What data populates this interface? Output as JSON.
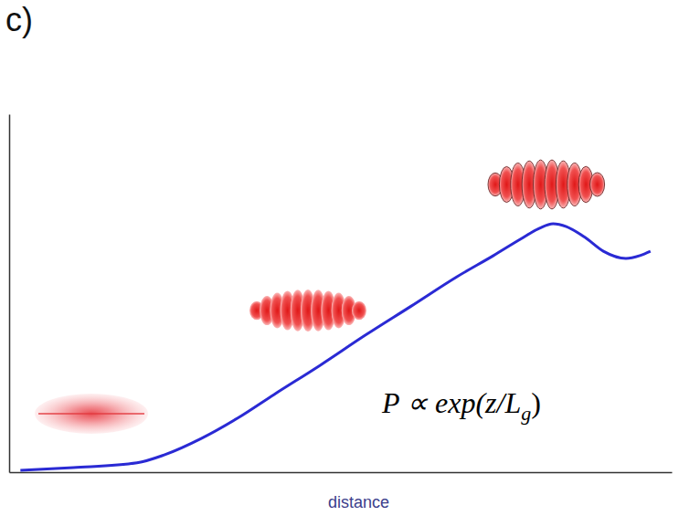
{
  "chart_data": {
    "type": "line",
    "panel_label": "c)",
    "x_label": "distance",
    "annotation": {
      "text": "P ∝ exp(z/L",
      "subscript": "g",
      "after": ")"
    },
    "x": [
      1.7,
      9.7,
      19.3,
      23.4,
      29.0,
      34.5,
      40.0,
      46.9,
      53.8,
      60.7,
      67.6,
      73.1,
      77.2,
      80.0,
      82.1,
      84.1,
      86.9,
      89.7,
      93.1,
      95.2,
      96.8
    ],
    "values": [
      0.5,
      1.3,
      2.6,
      4.8,
      9.4,
      15.1,
      21.7,
      29.8,
      38.3,
      46.4,
      54.6,
      60.5,
      65.1,
      68.1,
      69.4,
      68.6,
      65.6,
      61.7,
      59.7,
      60.5,
      61.7
    ],
    "color": "#2a2ad4",
    "xlim": [
      0,
      100
    ],
    "ylim": [
      0,
      100
    ],
    "tick_labels": false
  }
}
